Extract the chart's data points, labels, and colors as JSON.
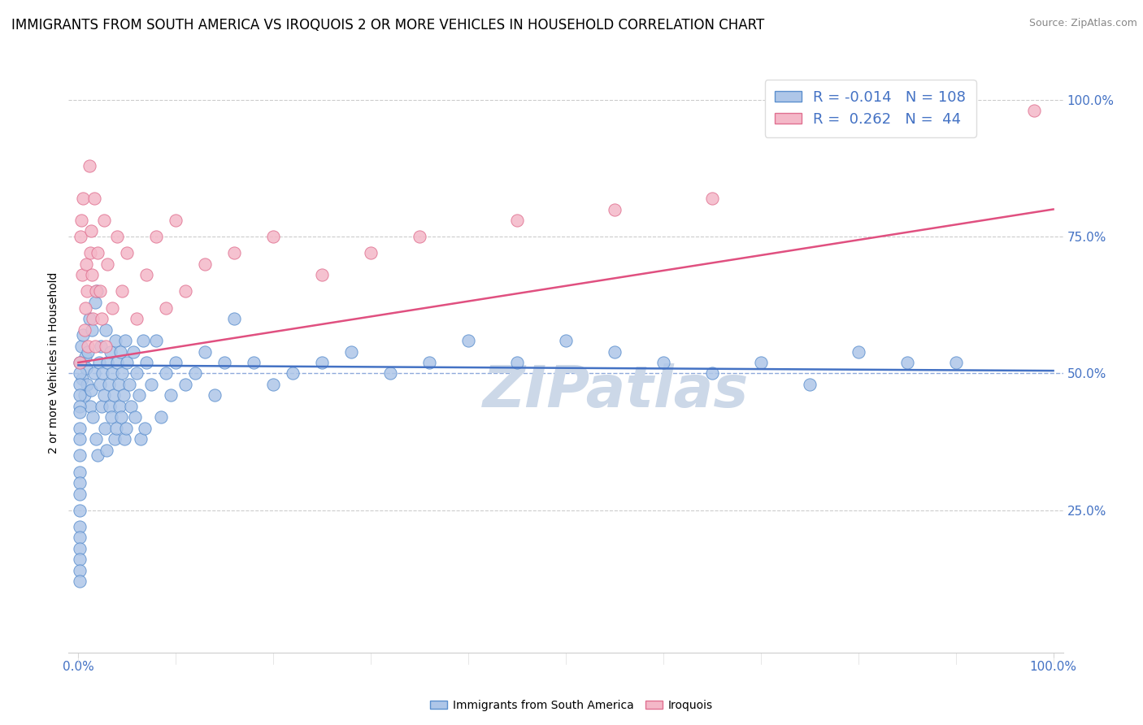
{
  "title": "IMMIGRANTS FROM SOUTH AMERICA VS IROQUOIS 2 OR MORE VEHICLES IN HOUSEHOLD CORRELATION CHART",
  "source": "Source: ZipAtlas.com",
  "ylabel": "2 or more Vehicles in Household",
  "watermark": "ZIPatlas",
  "blue_R": -0.014,
  "blue_N": 108,
  "pink_R": 0.262,
  "pink_N": 44,
  "blue_color": "#aec6e8",
  "blue_edge": "#5b8fce",
  "blue_line": "#4472c4",
  "pink_color": "#f4b8c8",
  "pink_edge": "#e07090",
  "pink_line": "#e05080",
  "blue_x": [
    0.002,
    0.003,
    0.004,
    0.005,
    0.006,
    0.007,
    0.008,
    0.009,
    0.01,
    0.011,
    0.012,
    0.013,
    0.014,
    0.015,
    0.016,
    0.017,
    0.018,
    0.019,
    0.02,
    0.021,
    0.022,
    0.023,
    0.024,
    0.025,
    0.026,
    0.027,
    0.028,
    0.029,
    0.03,
    0.031,
    0.032,
    0.033,
    0.034,
    0.035,
    0.036,
    0.037,
    0.038,
    0.039,
    0.04,
    0.041,
    0.042,
    0.043,
    0.044,
    0.045,
    0.046,
    0.047,
    0.048,
    0.049,
    0.05,
    0.052,
    0.054,
    0.056,
    0.058,
    0.06,
    0.062,
    0.064,
    0.066,
    0.068,
    0.07,
    0.075,
    0.08,
    0.085,
    0.09,
    0.095,
    0.1,
    0.11,
    0.12,
    0.13,
    0.14,
    0.15,
    0.16,
    0.18,
    0.2,
    0.22,
    0.25,
    0.28,
    0.32,
    0.36,
    0.4,
    0.45,
    0.5,
    0.55,
    0.6,
    0.65,
    0.7,
    0.75,
    0.8,
    0.85,
    0.9,
    0.001,
    0.001,
    0.001,
    0.001,
    0.001,
    0.001,
    0.001,
    0.001,
    0.001,
    0.001,
    0.001,
    0.001,
    0.001,
    0.001,
    0.001,
    0.001,
    0.001,
    0.001,
    0.001
  ],
  "blue_y": [
    0.52,
    0.55,
    0.49,
    0.57,
    0.46,
    0.53,
    0.51,
    0.48,
    0.54,
    0.6,
    0.44,
    0.47,
    0.58,
    0.42,
    0.5,
    0.63,
    0.38,
    0.65,
    0.35,
    0.52,
    0.48,
    0.55,
    0.44,
    0.5,
    0.46,
    0.4,
    0.58,
    0.36,
    0.52,
    0.48,
    0.44,
    0.54,
    0.42,
    0.5,
    0.46,
    0.38,
    0.56,
    0.4,
    0.52,
    0.48,
    0.44,
    0.54,
    0.42,
    0.5,
    0.46,
    0.38,
    0.56,
    0.4,
    0.52,
    0.48,
    0.44,
    0.54,
    0.42,
    0.5,
    0.46,
    0.38,
    0.56,
    0.4,
    0.52,
    0.48,
    0.56,
    0.42,
    0.5,
    0.46,
    0.52,
    0.48,
    0.5,
    0.54,
    0.46,
    0.52,
    0.6,
    0.52,
    0.48,
    0.5,
    0.52,
    0.54,
    0.5,
    0.52,
    0.56,
    0.52,
    0.56,
    0.54,
    0.52,
    0.5,
    0.52,
    0.48,
    0.54,
    0.52,
    0.52,
    0.52,
    0.5,
    0.48,
    0.46,
    0.44,
    0.43,
    0.4,
    0.38,
    0.35,
    0.32,
    0.3,
    0.28,
    0.25,
    0.22,
    0.2,
    0.18,
    0.16,
    0.14,
    0.12
  ],
  "pink_x": [
    0.001,
    0.002,
    0.003,
    0.004,
    0.005,
    0.006,
    0.007,
    0.008,
    0.009,
    0.01,
    0.011,
    0.012,
    0.013,
    0.014,
    0.015,
    0.016,
    0.017,
    0.018,
    0.02,
    0.022,
    0.024,
    0.026,
    0.028,
    0.03,
    0.035,
    0.04,
    0.045,
    0.05,
    0.06,
    0.07,
    0.08,
    0.09,
    0.1,
    0.11,
    0.13,
    0.16,
    0.2,
    0.25,
    0.3,
    0.35,
    0.45,
    0.55,
    0.65,
    0.98
  ],
  "pink_y": [
    0.52,
    0.75,
    0.78,
    0.68,
    0.82,
    0.58,
    0.62,
    0.7,
    0.65,
    0.55,
    0.88,
    0.72,
    0.76,
    0.68,
    0.6,
    0.82,
    0.55,
    0.65,
    0.72,
    0.65,
    0.6,
    0.78,
    0.55,
    0.7,
    0.62,
    0.75,
    0.65,
    0.72,
    0.6,
    0.68,
    0.75,
    0.62,
    0.78,
    0.65,
    0.7,
    0.72,
    0.75,
    0.68,
    0.72,
    0.75,
    0.78,
    0.8,
    0.82,
    0.98
  ],
  "xlim": [
    -0.01,
    1.01
  ],
  "ylim": [
    -0.01,
    1.05
  ],
  "grid_color": "#cccccc",
  "grid50_color": "#4472c4",
  "background_color": "#ffffff",
  "title_fontsize": 12,
  "tick_fontsize": 11,
  "legend_fontsize": 13,
  "watermark_color": "#ccd8e8",
  "watermark_fontsize": 52
}
